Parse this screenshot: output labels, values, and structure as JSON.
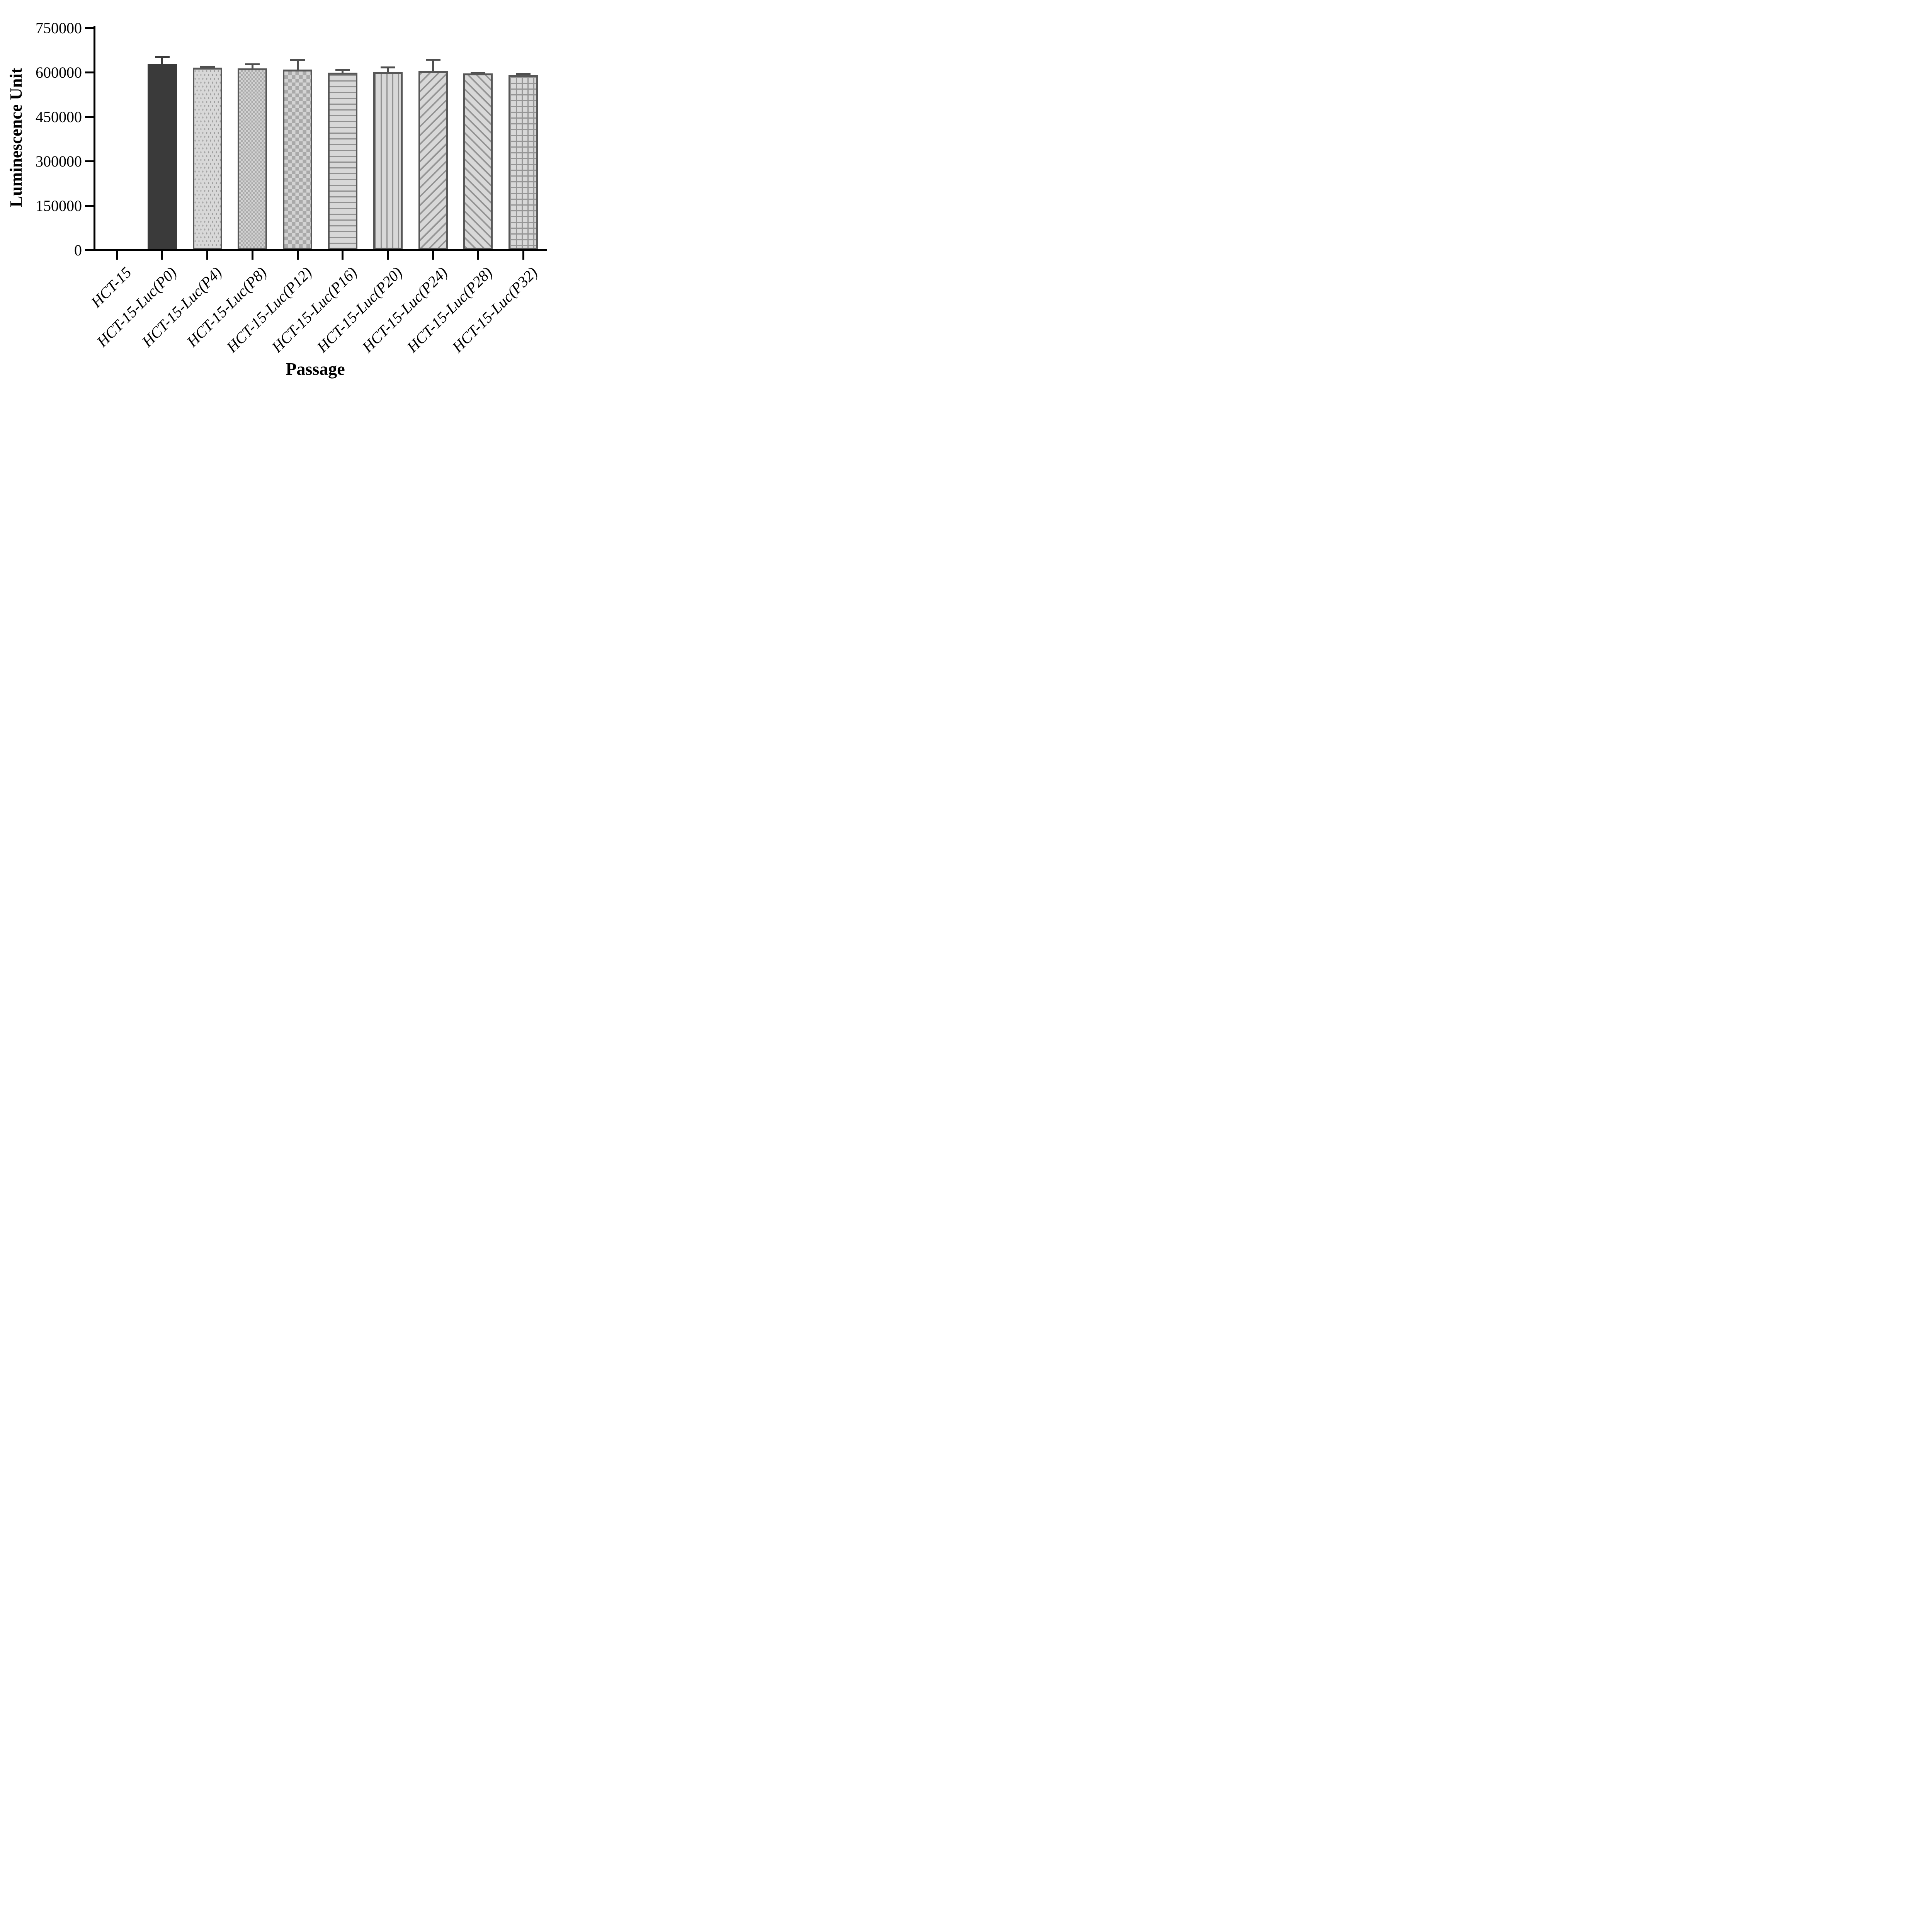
{
  "chart_data": {
    "type": "bar",
    "title": "",
    "xlabel": "Passage",
    "ylabel": "Luminescence Unit",
    "ylim": [
      0,
      750000
    ],
    "yticks": [
      0,
      150000,
      300000,
      450000,
      600000,
      750000
    ],
    "ytick_labels": [
      "0",
      "150000",
      "300000",
      "450000",
      "600000",
      "750000"
    ],
    "categories": [
      "HCT-15",
      "HCT-15-Luc(P0)",
      "HCT-15-Luc(P4)",
      "HCT-15-Luc(P8)",
      "HCT-15-Luc(P12)",
      "HCT-15-Luc(P16)",
      "HCT-15-Luc(P20)",
      "HCT-15-Luc(P24)",
      "HCT-15-Luc(P28)",
      "HCT-15-Luc(P32)"
    ],
    "values": [
      0,
      625000,
      613000,
      610000,
      607000,
      596000,
      599000,
      601000,
      593000,
      588000
    ],
    "errors_plus": [
      0,
      27000,
      6000,
      17000,
      35000,
      12000,
      18000,
      42000,
      5000,
      7000
    ],
    "bar_patterns": [
      "none",
      "solid-dark",
      "dots",
      "checker-fine",
      "checker-coarse",
      "hlines",
      "vlines",
      "diag-up",
      "diag-down",
      "grid"
    ],
    "grid": false,
    "legend": null
  },
  "colors": {
    "background": "#ffffff",
    "axis": "#000000",
    "bar_dark": "#3a3a3a",
    "bar_fill": "#d8d8d8",
    "bar_border": "#575757",
    "pattern_stroke": "#989898",
    "error_bar": "#4f4f4f"
  }
}
